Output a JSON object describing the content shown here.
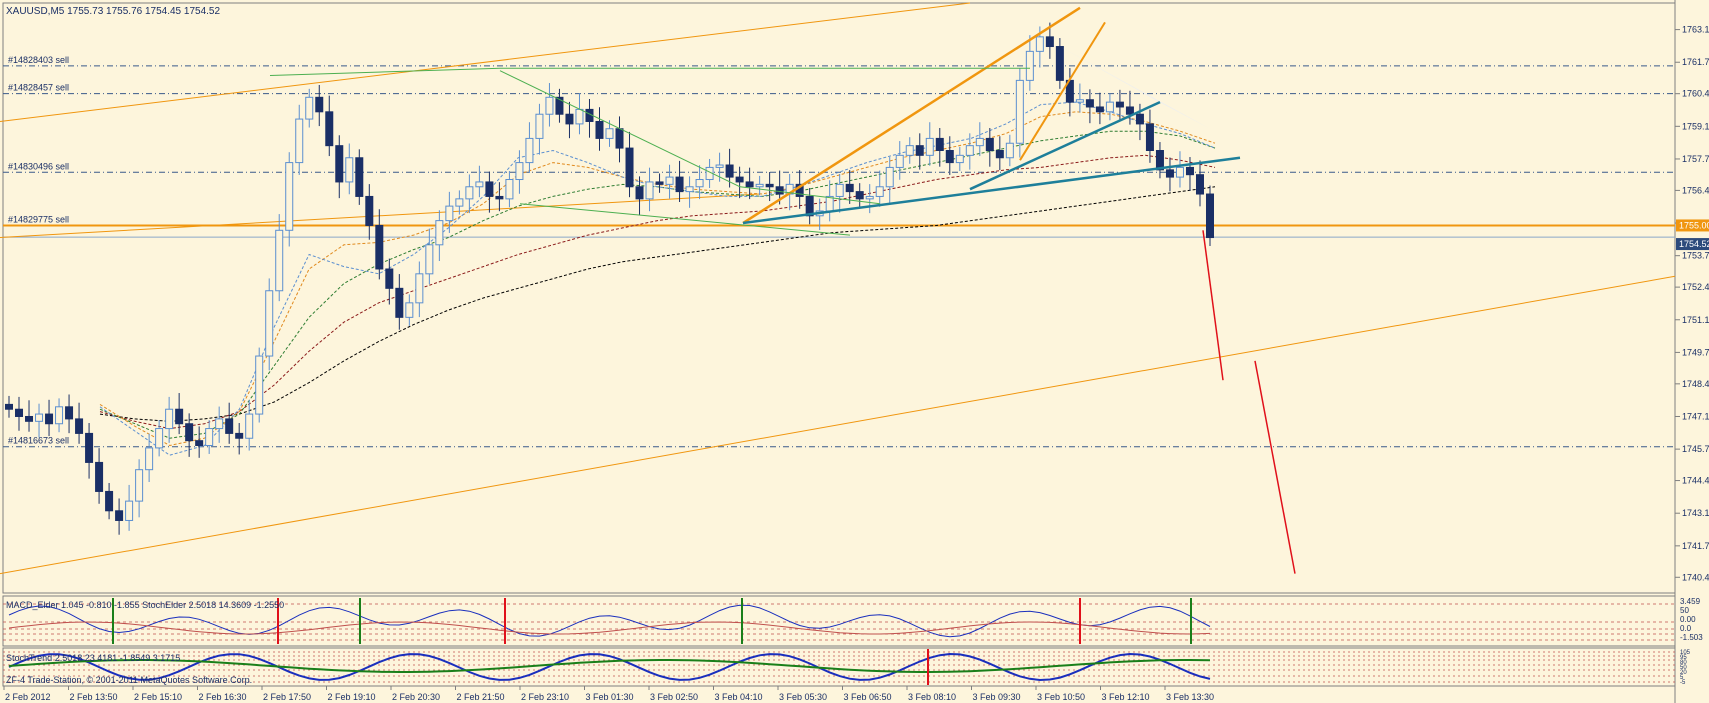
{
  "chart_data": {
    "type": "line",
    "symbol_header": "XAUUSD,M5  1755.73 1755.76 1754.45 1754.52",
    "price_axis": {
      "min": 1739.8,
      "max": 1764.2,
      "ticks": [
        "1763.10",
        "1761.75",
        "1760.45",
        "1759.10",
        "1757.75",
        "1756.45",
        "1755.10",
        "1753.75",
        "1752.45",
        "1751.10",
        "1749.75",
        "1748.45",
        "1747.10",
        "1745.75",
        "1744.45",
        "1743.10",
        "1741.75",
        "1740.45"
      ],
      "current_price_label": "1754.52",
      "current_price": 1754.52,
      "highlight_label": "1755.00",
      "highlight_price": 1755.0
    },
    "time_axis": {
      "ticks": [
        "2 Feb 2012",
        "2 Feb 13:50",
        "2 Feb 15:10",
        "2 Feb 16:30",
        "2 Feb 17:50",
        "2 Feb 19:10",
        "2 Feb 20:30",
        "2 Feb 21:50",
        "2 Feb 23:10",
        "3 Feb 01:30",
        "3 Feb 02:50",
        "3 Feb 04:10",
        "3 Feb 05:30",
        "3 Feb 06:50",
        "3 Feb 08:10",
        "3 Feb 09:30",
        "3 Feb 10:50",
        "3 Feb 12:10",
        "3 Feb 13:30"
      ]
    },
    "orders": [
      {
        "label": "#14828403 sell",
        "price": 1761.6
      },
      {
        "label": "#14828457 sell",
        "price": 1760.45
      },
      {
        "label": "#14830496 sell",
        "price": 1757.2
      },
      {
        "label": "#14829775 sell",
        "price": 1755.0
      },
      {
        "label": "#14816673 sell",
        "price": 1745.85
      }
    ],
    "series": [
      {
        "values": [
          1747.4,
          1747.1,
          1746.9,
          1747.2,
          1746.8,
          1747.5,
          1747.0,
          1746.4,
          1745.2,
          1744.0,
          1743.2,
          1742.8,
          1743.6,
          1744.9,
          1745.8,
          1746.6,
          1747.4,
          1746.8,
          1746.1,
          1745.9,
          1746.6,
          1747.0,
          1746.4,
          1746.2,
          1747.2,
          1749.6,
          1752.3,
          1754.8,
          1757.6,
          1759.4,
          1760.3,
          1759.7,
          1758.3,
          1756.8,
          1757.8,
          1756.2,
          1755.0,
          1753.2,
          1752.4,
          1751.2,
          1751.8,
          1753.0,
          1754.2,
          1755.2,
          1755.8,
          1756.1,
          1756.6,
          1756.8,
          1756.2,
          1756.1,
          1756.9,
          1757.6,
          1758.6,
          1759.6,
          1760.3,
          1759.6,
          1759.2,
          1759.8,
          1759.3,
          1758.6,
          1759.0,
          1758.2,
          1756.6,
          1756.1,
          1756.8,
          1756.7,
          1757.0,
          1756.4,
          1756.6,
          1756.9,
          1757.4,
          1757.5,
          1757.0,
          1756.8,
          1756.6,
          1756.7,
          1756.6,
          1756.3,
          1756.7,
          1756.2,
          1755.4,
          1755.6,
          1756.2,
          1756.7,
          1756.4,
          1756.1,
          1756.2,
          1756.6,
          1757.4,
          1757.9,
          1758.3,
          1757.9,
          1758.6,
          1758.1,
          1757.6,
          1757.9,
          1758.3,
          1758.6,
          1758.1,
          1757.8,
          1758.4,
          1761.0,
          1762.2,
          1762.8,
          1762.4,
          1761.0,
          1760.1,
          1760.2,
          1759.9,
          1759.7,
          1760.1,
          1759.9,
          1759.6,
          1759.2,
          1758.1,
          1757.3,
          1757.0,
          1757.4,
          1757.1,
          1756.3,
          1754.5
        ]
      }
    ],
    "ma_lines": [
      {
        "color": "#000000",
        "values": [
          1747.2,
          1747.0,
          1746.9,
          1747.0,
          1747.2,
          1747.7,
          1748.5,
          1749.4,
          1750.2,
          1750.9,
          1751.5,
          1752.0,
          1752.4,
          1752.8,
          1753.2,
          1753.5,
          1753.7,
          1753.9,
          1754.1,
          1754.3,
          1754.5,
          1754.7,
          1754.8,
          1754.9,
          1755.0,
          1755.2,
          1755.4,
          1755.6,
          1755.8,
          1756.0,
          1756.2,
          1756.4,
          1756.6
        ]
      },
      {
        "color": "#8b1a1a",
        "values": [
          1747.3,
          1746.9,
          1746.6,
          1746.8,
          1747.3,
          1748.4,
          1749.8,
          1751.0,
          1751.8,
          1752.3,
          1752.8,
          1753.3,
          1753.8,
          1754.2,
          1754.6,
          1754.9,
          1755.2,
          1755.4,
          1755.5,
          1755.6,
          1755.8,
          1756.0,
          1756.3,
          1756.6,
          1756.9,
          1757.1,
          1757.3,
          1757.4,
          1757.6,
          1757.8,
          1757.9,
          1757.7,
          1757.4
        ]
      },
      {
        "color": "#2e7d32",
        "values": [
          1747.4,
          1746.8,
          1746.2,
          1746.4,
          1747.2,
          1749.2,
          1751.2,
          1752.6,
          1753.4,
          1754.0,
          1754.5,
          1755.2,
          1755.8,
          1756.2,
          1756.5,
          1756.7,
          1756.6,
          1756.4,
          1756.3,
          1756.2,
          1756.4,
          1756.7,
          1757.0,
          1757.3,
          1757.6,
          1757.9,
          1758.2,
          1758.5,
          1758.7,
          1758.9,
          1758.9,
          1758.7,
          1758.2
        ]
      },
      {
        "color": "#e08a1e",
        "values": [
          1747.6,
          1746.7,
          1745.9,
          1746.2,
          1747.3,
          1750.2,
          1753.2,
          1754.2,
          1754.3,
          1754.6,
          1755.1,
          1755.9,
          1757.1,
          1757.6,
          1757.4,
          1757.0,
          1756.7,
          1756.5,
          1756.4,
          1756.3,
          1756.6,
          1757.0,
          1757.4,
          1757.8,
          1758.1,
          1758.4,
          1758.8,
          1759.5,
          1759.7,
          1759.6,
          1759.3,
          1758.9,
          1758.4
        ]
      },
      {
        "color": "#5b8fd0",
        "values": [
          1747.5,
          1746.5,
          1745.5,
          1745.9,
          1747.4,
          1750.8,
          1753.8,
          1753.3,
          1753.0,
          1753.8,
          1754.9,
          1756.2,
          1757.8,
          1758.1,
          1757.6,
          1757.0,
          1756.6,
          1756.4,
          1756.2,
          1756.2,
          1756.6,
          1757.1,
          1757.6,
          1758.0,
          1758.3,
          1758.6,
          1759.2,
          1760.0,
          1760.1,
          1759.7,
          1759.2,
          1758.8,
          1758.2
        ]
      }
    ],
    "macd_panel": {
      "label": "MACD_Elder 1.045 -0.810 -1.855 StochElder 2.5018 14.3609 -1.2550",
      "scale_labels": [
        "3.459",
        "50",
        "0.00",
        "0.0",
        "-1.503"
      ]
    },
    "stoch_panel": {
      "label": "StochTrend 2.5018 23.4181 -1.8549 3.1715",
      "watermark": "ZF-4 Trade-Station, © 2001-2011 MetaQuotes Software Corp.",
      "scale_labels": [
        "105",
        "95",
        "80",
        "50",
        "20",
        "5",
        "-5"
      ]
    },
    "colors": {
      "background": "#fdf5dc",
      "bull_candle": "#5b8fd0",
      "bear_candle": "#1a2f66",
      "channel": "#f0960f",
      "level_line": "#f0960f",
      "order_line": "#3a5a8a",
      "forecast": "#e0101a",
      "trendline_teal": "#1e7f9a",
      "trendline_green": "#4caf50"
    }
  }
}
